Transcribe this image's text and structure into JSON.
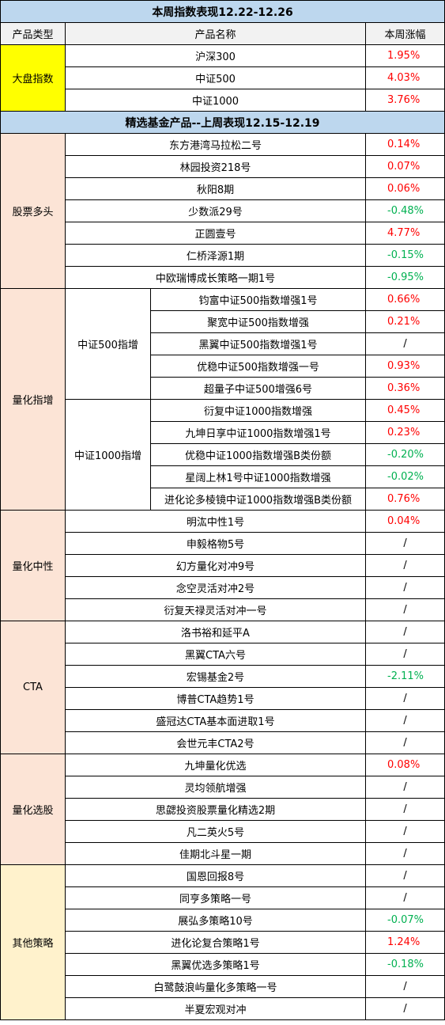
{
  "title_week": "本周指数表现12.22-12.26",
  "headers": {
    "type": "产品类型",
    "name": "产品名称",
    "change": "本周涨幅"
  },
  "index_group": {
    "category": "大盘指数",
    "rows": [
      {
        "name": "沪深300",
        "change": "1.95%"
      },
      {
        "name": "中证500",
        "change": "4.03%"
      },
      {
        "name": "中证1000",
        "change": "3.76%"
      }
    ]
  },
  "title_funds": "精选基金产品--上周表现12.15-12.19",
  "stock_long": {
    "category": "股票多头",
    "rows": [
      {
        "name": "东方港湾马拉松二号",
        "change": "0.14%"
      },
      {
        "name": "林园投资218号",
        "change": "0.07%"
      },
      {
        "name": "秋阳8期",
        "change": "0.06%"
      },
      {
        "name": "少数派29号",
        "change": "-0.48%"
      },
      {
        "name": "正圆壹号",
        "change": "4.77%"
      },
      {
        "name": "仁桥泽源1期",
        "change": "-0.15%"
      },
      {
        "name": "中欧瑞博成长策略一期1号",
        "change": "-0.95%"
      }
    ]
  },
  "quant_enhanced": {
    "category": "量化指增",
    "sub_500": {
      "label": "中证500指增",
      "rows": [
        {
          "name": "钧富中证500指数增强1号",
          "change": "0.66%"
        },
        {
          "name": "聚宽中证500指数增强",
          "change": "0.21%"
        },
        {
          "name": "黑翼中证500指数增强1号",
          "change": "/"
        },
        {
          "name": "优稳中证500指数增强一号",
          "change": "0.93%"
        },
        {
          "name": "超量子中证500增强6号",
          "change": "0.36%"
        }
      ]
    },
    "sub_1000": {
      "label": "中证1000指增",
      "rows": [
        {
          "name": "衍复中证1000指数增强",
          "change": "0.45%"
        },
        {
          "name": "九坤日享中证1000指数增强1号",
          "change": "0.23%"
        },
        {
          "name": "优稳中证1000指数增强B类份额",
          "change": "-0.20%"
        },
        {
          "name": "星阔上林1号中证1000指数增强",
          "change": "-0.02%"
        },
        {
          "name": "进化论多棱镜中证1000指数增强B类份额",
          "change": "0.76%"
        }
      ]
    }
  },
  "quant_neutral": {
    "category": "量化中性",
    "rows": [
      {
        "name": "明汯中性1号",
        "change": "0.04%"
      },
      {
        "name": "申毅格物5号",
        "change": "/"
      },
      {
        "name": "幻方量化对冲9号",
        "change": "/"
      },
      {
        "name": "念空灵活对冲2号",
        "change": "/"
      },
      {
        "name": "衍复天禄灵活对冲一号",
        "change": "/"
      }
    ]
  },
  "cta": {
    "category": "CTA",
    "rows": [
      {
        "name": "洛书裕和延平A",
        "change": "/"
      },
      {
        "name": "黑翼CTA六号",
        "change": "/"
      },
      {
        "name": "宏锡基金2号",
        "change": "-2.11%"
      },
      {
        "name": "博普CTA趋势1号",
        "change": "/"
      },
      {
        "name": "盛冠达CTA基本面进取1号",
        "change": "/"
      },
      {
        "name": "会世元丰CTA2号",
        "change": "/"
      }
    ]
  },
  "quant_selection": {
    "category": "量化选股",
    "rows": [
      {
        "name": "九坤量化优选",
        "change": "0.08%"
      },
      {
        "name": "灵均领航增强",
        "change": "/"
      },
      {
        "name": "思勰投资股票量化精选2期",
        "change": "/"
      },
      {
        "name": "凡二英火5号",
        "change": "/"
      },
      {
        "name": "佳期北斗星一期",
        "change": "/"
      }
    ]
  },
  "other": {
    "category": "其他策略",
    "rows": [
      {
        "name": "国恩回报8号",
        "change": "/"
      },
      {
        "name": "同亨多策略一号",
        "change": "/"
      },
      {
        "name": "展弘多策略10号",
        "change": "-0.07%"
      },
      {
        "name": "进化论复合策略1号",
        "change": "1.24%"
      },
      {
        "name": "黑翼优选多策略1号",
        "change": "-0.18%"
      },
      {
        "name": "白鹭鼓浪屿量化多策略一号",
        "change": "/"
      },
      {
        "name": "半夏宏观对冲",
        "change": "/"
      }
    ]
  },
  "colors": {
    "positive": "#ff0000",
    "negative": "#00b050",
    "title_bg": "#bdd7ee",
    "category_yellow": "#ffff00",
    "category_peach": "#fce4d6",
    "category_cream": "#fff2cc"
  }
}
